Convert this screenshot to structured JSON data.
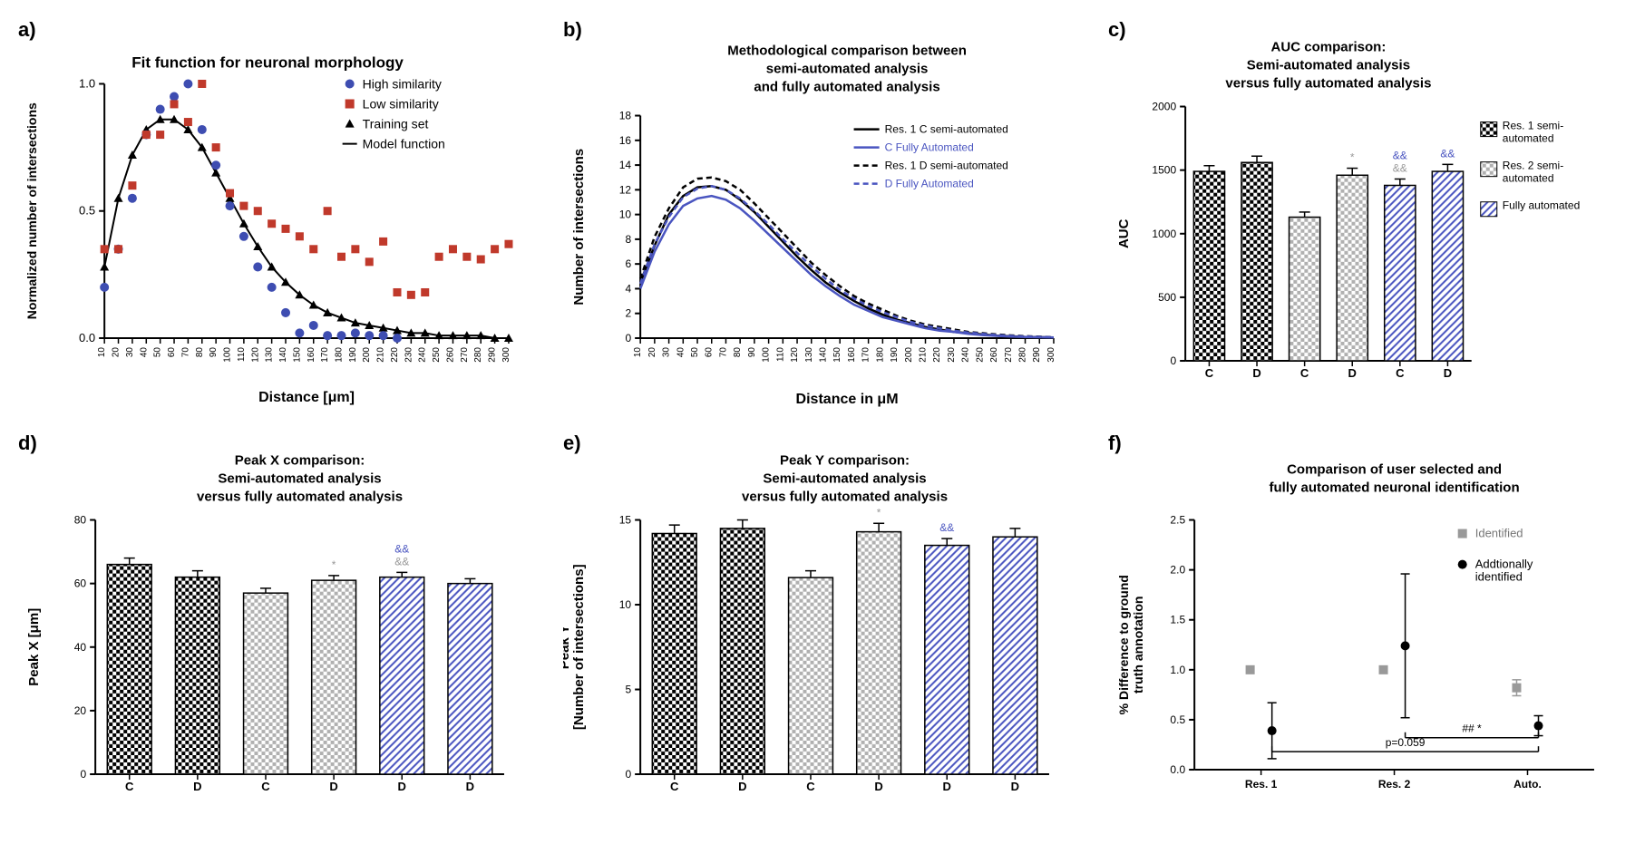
{
  "panel_a": {
    "label": "a)",
    "title": "Fit function for neuronal morphology",
    "xlabel": "Distance [μm]",
    "ylabel": "Normalized number of intersections",
    "xlim": [
      10,
      300
    ],
    "ylim": [
      0,
      1.0
    ],
    "xticks": [
      10,
      20,
      30,
      40,
      50,
      60,
      70,
      80,
      90,
      100,
      110,
      120,
      130,
      140,
      150,
      160,
      170,
      180,
      190,
      200,
      210,
      220,
      230,
      240,
      250,
      260,
      270,
      280,
      290,
      300
    ],
    "yticks": [
      0.0,
      0.5,
      1.0
    ],
    "legend": [
      {
        "label": "High similarity",
        "color": "#3e4db1",
        "marker": "circle"
      },
      {
        "label": "Low similarity",
        "color": "#c0392b",
        "marker": "square"
      },
      {
        "label": "Training set",
        "color": "#000000",
        "marker": "triangle"
      },
      {
        "label": "Model function",
        "color": "#000000",
        "marker": "line"
      }
    ],
    "high_similarity": {
      "x": [
        10,
        20,
        30,
        40,
        50,
        60,
        70,
        80,
        90,
        100,
        110,
        120,
        130,
        140,
        150,
        160,
        170,
        180,
        190,
        200,
        210,
        220
      ],
      "y": [
        0.2,
        0.35,
        0.55,
        0.8,
        0.9,
        0.95,
        1.0,
        0.82,
        0.68,
        0.52,
        0.4,
        0.28,
        0.2,
        0.1,
        0.02,
        0.05,
        0.01,
        0.01,
        0.02,
        0.01,
        0.01,
        0.0
      ]
    },
    "low_similarity": {
      "x": [
        10,
        20,
        30,
        40,
        50,
        60,
        70,
        80,
        90,
        100,
        110,
        120,
        130,
        140,
        150,
        160,
        170,
        180,
        190,
        200,
        210,
        220,
        230,
        240,
        250,
        260,
        270,
        280,
        290,
        300
      ],
      "y": [
        0.35,
        0.35,
        0.6,
        0.8,
        0.8,
        0.92,
        0.85,
        1.0,
        0.75,
        0.57,
        0.52,
        0.5,
        0.45,
        0.43,
        0.4,
        0.35,
        0.5,
        0.32,
        0.35,
        0.3,
        0.38,
        0.18,
        0.17,
        0.18,
        0.32,
        0.35,
        0.32,
        0.31,
        0.35,
        0.37
      ]
    },
    "training_set": {
      "x": [
        10,
        20,
        30,
        40,
        50,
        60,
        70,
        80,
        90,
        100,
        110,
        120,
        130,
        140,
        150,
        160,
        170,
        180,
        190,
        200,
        210,
        220,
        230,
        240,
        250,
        260,
        270,
        280,
        290,
        300
      ],
      "y": [
        0.28,
        0.55,
        0.72,
        0.82,
        0.86,
        0.86,
        0.82,
        0.75,
        0.65,
        0.55,
        0.45,
        0.36,
        0.28,
        0.22,
        0.17,
        0.13,
        0.1,
        0.08,
        0.06,
        0.05,
        0.04,
        0.03,
        0.02,
        0.02,
        0.01,
        0.01,
        0.01,
        0.01,
        0.0,
        0.0
      ]
    },
    "model_function": {
      "x": [
        10,
        20,
        30,
        40,
        50,
        60,
        70,
        80,
        90,
        100,
        110,
        120,
        130,
        140,
        150,
        160,
        170,
        180,
        190,
        200,
        210,
        220,
        230,
        240,
        250,
        260,
        270,
        280,
        290,
        300
      ],
      "y": [
        0.28,
        0.55,
        0.72,
        0.82,
        0.86,
        0.86,
        0.82,
        0.75,
        0.65,
        0.55,
        0.45,
        0.36,
        0.28,
        0.22,
        0.17,
        0.13,
        0.1,
        0.08,
        0.06,
        0.05,
        0.04,
        0.03,
        0.02,
        0.02,
        0.01,
        0.01,
        0.01,
        0.01,
        0.0,
        0.0
      ]
    }
  },
  "panel_b": {
    "label": "b)",
    "title1": "Methodological comparison between",
    "title2": "semi-automated analysis",
    "title3": "and fully automated analysis",
    "xlabel": "Distance in μM",
    "ylabel": "Number of intersections",
    "xlim": [
      10,
      300
    ],
    "ylim": [
      0,
      18
    ],
    "xticks": [
      10,
      20,
      30,
      40,
      50,
      60,
      70,
      80,
      90,
      100,
      110,
      120,
      130,
      140,
      150,
      160,
      170,
      180,
      190,
      200,
      210,
      220,
      230,
      240,
      250,
      260,
      270,
      280,
      290,
      300
    ],
    "yticks": [
      0,
      2,
      4,
      6,
      8,
      10,
      12,
      14,
      16,
      18
    ],
    "legend": [
      {
        "label": "Res. 1 C semi-automated",
        "color": "#000000",
        "dash": false
      },
      {
        "label": "C Fully Automated",
        "color": "#4a55c0",
        "dash": false
      },
      {
        "label": "Res. 1 D semi-automated",
        "color": "#000000",
        "dash": true
      },
      {
        "label": "D Fully Automated",
        "color": "#4a55c0",
        "dash": true
      }
    ],
    "series": {
      "res1_c": {
        "color": "#000000",
        "dash": false,
        "y": [
          4.5,
          7.5,
          10.0,
          11.5,
          12.2,
          12.3,
          12.0,
          11.2,
          10.2,
          9.0,
          7.8,
          6.6,
          5.5,
          4.5,
          3.7,
          3.0,
          2.4,
          1.9,
          1.5,
          1.2,
          0.9,
          0.7,
          0.5,
          0.4,
          0.3,
          0.2,
          0.15,
          0.1,
          0.08,
          0.05
        ]
      },
      "c_auto": {
        "color": "#4a55c0",
        "dash": false,
        "y": [
          4.0,
          7.0,
          9.2,
          10.7,
          11.3,
          11.5,
          11.2,
          10.5,
          9.5,
          8.4,
          7.3,
          6.2,
          5.1,
          4.2,
          3.4,
          2.7,
          2.2,
          1.7,
          1.4,
          1.1,
          0.8,
          0.6,
          0.5,
          0.35,
          0.25,
          0.18,
          0.13,
          0.09,
          0.07,
          0.05
        ]
      },
      "res1_d": {
        "color": "#000000",
        "dash": true,
        "y": [
          4.8,
          8.2,
          10.5,
          12.2,
          12.9,
          13.0,
          12.7,
          12.0,
          10.9,
          9.7,
          8.5,
          7.3,
          6.1,
          5.1,
          4.2,
          3.4,
          2.8,
          2.3,
          1.8,
          1.4,
          1.1,
          0.9,
          0.7,
          0.5,
          0.4,
          0.3,
          0.22,
          0.16,
          0.12,
          0.08
        ]
      },
      "d_auto": {
        "color": "#4a55c0",
        "dash": true,
        "y": [
          4.4,
          7.6,
          9.8,
          11.4,
          12.1,
          12.3,
          12.0,
          11.3,
          10.3,
          9.2,
          8.0,
          6.9,
          5.8,
          4.8,
          3.9,
          3.2,
          2.6,
          2.1,
          1.7,
          1.3,
          1.0,
          0.8,
          0.6,
          0.45,
          0.35,
          0.25,
          0.18,
          0.13,
          0.1,
          0.07
        ]
      }
    }
  },
  "panel_c": {
    "label": "c)",
    "title1": "AUC comparison:",
    "title2": "Semi-automated analysis",
    "title3": "versus fully automated analysis",
    "ylabel": "AUC",
    "ylim": [
      0,
      2000
    ],
    "yticks": [
      0,
      500,
      1000,
      1500,
      2000
    ],
    "categories": [
      "C",
      "D",
      "C",
      "D",
      "C",
      "D"
    ],
    "values": [
      1490,
      1560,
      1130,
      1460,
      1380,
      1490
    ],
    "errors": [
      45,
      50,
      40,
      55,
      50,
      55
    ],
    "annotations": [
      "",
      "",
      "",
      "*",
      "&&\n&&",
      "&&"
    ],
    "annotation_colors": [
      "#000",
      "#000",
      "#000",
      "#999",
      "#999",
      "#4a55c0"
    ],
    "bar_styles": [
      "check-black",
      "check-black",
      "check-gray",
      "check-gray",
      "hatch-blue",
      "hatch-blue"
    ],
    "legend": [
      {
        "label": "Res. 1 semi-\nautomated",
        "style": "check-black"
      },
      {
        "label": "Res. 2 semi-\nautomated",
        "style": "check-gray"
      },
      {
        "label": "Fully automated",
        "style": "hatch-blue"
      }
    ]
  },
  "panel_d": {
    "label": "d)",
    "title1": "Peak X comparison:",
    "title2": "Semi-automated analysis",
    "title3": "versus fully automated analysis",
    "ylabel": "Peak X [μm]",
    "ylim": [
      0,
      80
    ],
    "yticks": [
      0,
      20,
      40,
      60,
      80
    ],
    "categories": [
      "C",
      "D",
      "C",
      "D",
      "D",
      "D"
    ],
    "values": [
      66,
      62,
      57,
      61,
      62,
      60
    ],
    "errors": [
      2,
      2,
      1.5,
      1.5,
      1.5,
      1.5
    ],
    "annotations": [
      "",
      "",
      "",
      "*",
      "&&\n&&",
      ""
    ],
    "bar_styles": [
      "check-black",
      "check-black",
      "check-gray",
      "check-gray",
      "hatch-blue",
      "hatch-blue"
    ]
  },
  "panel_e": {
    "label": "e)",
    "title1": "Peak Y comparison:",
    "title2": "Semi-automated analysis",
    "title3": "versus fully automated analysis",
    "ylabel": "Peak Y\n[Number of intersections]",
    "ylim": [
      0,
      15
    ],
    "yticks": [
      0,
      5,
      10,
      15
    ],
    "categories": [
      "C",
      "D",
      "C",
      "D",
      "D",
      "D"
    ],
    "values": [
      14.2,
      14.5,
      11.6,
      14.3,
      13.5,
      14.0
    ],
    "errors": [
      0.5,
      0.5,
      0.4,
      0.5,
      0.4,
      0.5
    ],
    "annotations": [
      "",
      "",
      "",
      "*",
      "&&",
      ""
    ],
    "bar_styles": [
      "check-black",
      "check-black",
      "check-gray",
      "check-gray",
      "hatch-blue",
      "hatch-blue"
    ]
  },
  "panel_f": {
    "label": "f)",
    "title1": "Comparison of user selected and",
    "title2": "fully automated neuronal identification",
    "ylabel": "% Difference to ground\ntruth annotation",
    "ylim": [
      0.0,
      2.5
    ],
    "yticks": [
      0.0,
      0.5,
      1.0,
      1.5,
      2.0,
      2.5
    ],
    "categories": [
      "Res. 1",
      "Res. 2",
      "Auto."
    ],
    "legend": [
      {
        "label": "Identified",
        "color": "#999999",
        "marker": "square"
      },
      {
        "label": "Addtionally\nidentified",
        "color": "#000000",
        "marker": "circle"
      }
    ],
    "identified": {
      "x": [
        0,
        1,
        2
      ],
      "y": [
        1.0,
        1.0,
        0.82
      ],
      "err": [
        0,
        0,
        0.08
      ]
    },
    "additional": {
      "x": [
        0,
        1,
        2
      ],
      "y": [
        0.39,
        1.24,
        0.44
      ],
      "err": [
        0.28,
        0.72,
        0.1
      ]
    },
    "sig_lines": [
      {
        "from": 0,
        "to": 2,
        "y": 0.18,
        "label": "p=0.059"
      },
      {
        "from": 1,
        "to": 2,
        "y": 0.32,
        "label": "## *"
      }
    ]
  },
  "colors": {
    "black": "#000000",
    "gray": "#b0b0b0",
    "blue": "#4a55c0",
    "red": "#c0392b",
    "darkblue": "#3e4db1"
  }
}
